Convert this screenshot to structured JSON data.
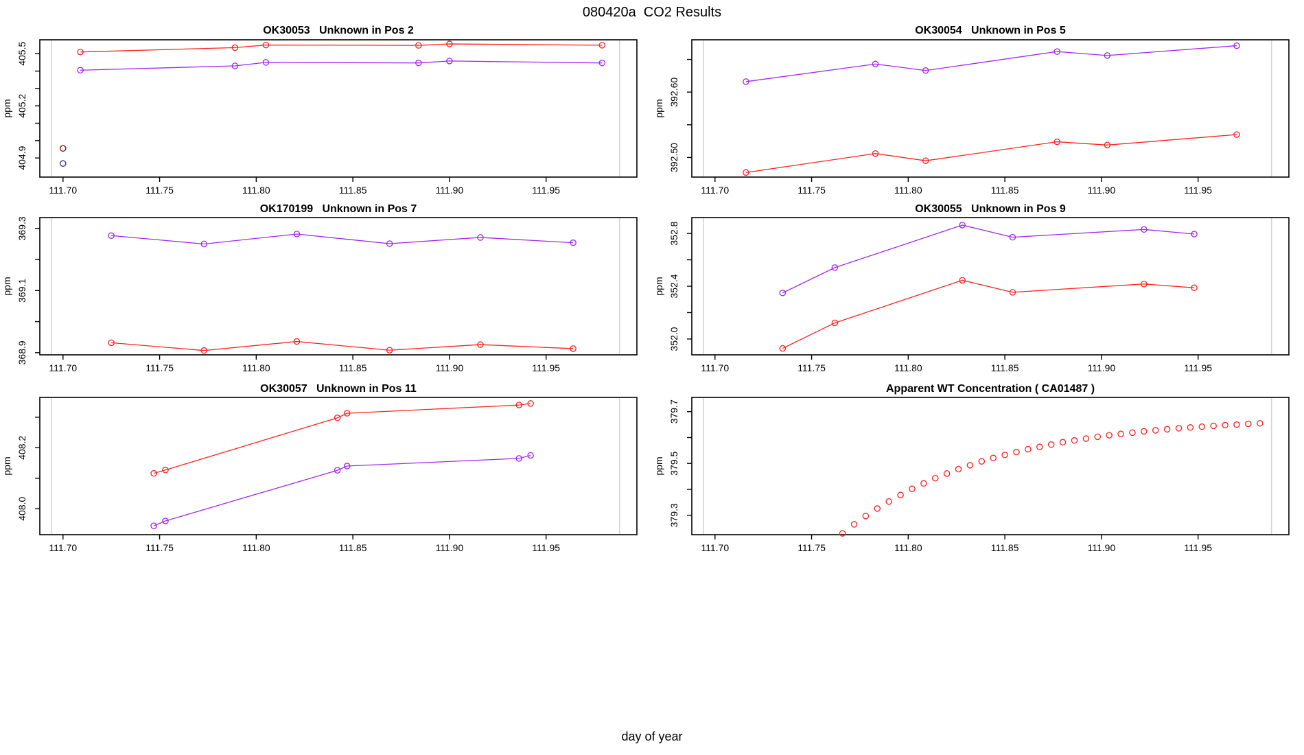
{
  "page_title": "080420a  CO2 Results",
  "outer_xlabel": "day of year",
  "y_axis_label": "ppm",
  "colors": {
    "red": "#ff2222",
    "purple": "#a228ee",
    "dark_red": "#8b2222",
    "dark_purple": "#473a8c",
    "vline_gray": "#d2d2d2",
    "axis": "#000000"
  },
  "x_axis": {
    "lim": [
      111.688,
      111.997
    ],
    "ticks": [
      111.7,
      111.75,
      111.8,
      111.85,
      111.9,
      111.95
    ],
    "labels": [
      "111.70",
      "111.75",
      "111.80",
      "111.85",
      "111.90",
      "111.95"
    ],
    "vlines": [
      111.694,
      111.988
    ]
  },
  "chart_data": [
    {
      "type": "line",
      "title": "OK30053   Unknown in Pos 2",
      "ylabel": "ppm",
      "ylim": [
        404.79,
        405.58
      ],
      "yticks": [
        {
          "v": 404.9,
          "label": "404.9"
        },
        {
          "v": 405.0,
          "label": ""
        },
        {
          "v": 405.1,
          "label": ""
        },
        {
          "v": 405.2,
          "label": "405.2"
        },
        {
          "v": 405.3,
          "label": ""
        },
        {
          "v": 405.4,
          "label": ""
        },
        {
          "v": 405.5,
          "label": "405.5"
        }
      ],
      "series": [
        {
          "name": "flask-red",
          "color": "red",
          "draw_line": true,
          "x": [
            111.709,
            111.789,
            111.805,
            111.884,
            111.9,
            111.979
          ],
          "y": [
            405.51,
            405.535,
            405.55,
            405.548,
            405.556,
            405.549
          ]
        },
        {
          "name": "flask-purple",
          "color": "purple",
          "draw_line": true,
          "x": [
            111.709,
            111.789,
            111.805,
            111.884,
            111.9,
            111.979
          ],
          "y": [
            405.405,
            405.43,
            405.45,
            405.447,
            405.458,
            405.447
          ]
        }
      ],
      "extra_points": [
        {
          "x": 111.7,
          "y": 404.955,
          "color": "dark_red"
        },
        {
          "x": 111.7,
          "y": 404.868,
          "color": "dark_purple"
        }
      ]
    },
    {
      "type": "line",
      "title": "OK30054   Unknown in Pos 5",
      "ylabel": "ppm",
      "ylim": [
        392.47,
        392.68
      ],
      "yticks": [
        {
          "v": 392.5,
          "label": "392.50"
        },
        {
          "v": 392.55,
          "label": ""
        },
        {
          "v": 392.6,
          "label": "392.60"
        },
        {
          "v": 392.65,
          "label": ""
        }
      ],
      "series": [
        {
          "name": "flask-purple",
          "color": "purple",
          "draw_line": true,
          "x": [
            111.716,
            111.783,
            111.809,
            111.877,
            111.903,
            111.97
          ],
          "y": [
            392.616,
            392.643,
            392.633,
            392.662,
            392.656,
            392.671
          ]
        },
        {
          "name": "flask-red",
          "color": "red",
          "draw_line": true,
          "x": [
            111.716,
            111.783,
            111.809,
            111.877,
            111.903,
            111.97
          ],
          "y": [
            392.477,
            392.506,
            392.495,
            392.524,
            392.519,
            392.535
          ]
        }
      ],
      "extra_points": []
    },
    {
      "type": "line",
      "title": "OK170199   Unknown in Pos 7",
      "ylabel": "ppm",
      "ylim": [
        368.893,
        369.335
      ],
      "yticks": [
        {
          "v": 368.9,
          "label": "368.9"
        },
        {
          "v": 369.0,
          "label": ""
        },
        {
          "v": 369.1,
          "label": "369.1"
        },
        {
          "v": 369.2,
          "label": ""
        },
        {
          "v": 369.3,
          "label": "369.3"
        }
      ],
      "series": [
        {
          "name": "flask-purple",
          "color": "purple",
          "draw_line": true,
          "x": [
            111.725,
            111.773,
            111.821,
            111.869,
            111.916,
            111.964
          ],
          "y": [
            369.277,
            369.25,
            369.282,
            369.251,
            369.271,
            369.254
          ]
        },
        {
          "name": "flask-red",
          "color": "red",
          "draw_line": true,
          "x": [
            111.725,
            111.773,
            111.821,
            111.869,
            111.916,
            111.964
          ],
          "y": [
            368.932,
            368.907,
            368.936,
            368.908,
            368.926,
            368.913
          ]
        }
      ],
      "extra_points": []
    },
    {
      "type": "line",
      "title": "OK30055   Unknown in Pos 9",
      "ylabel": "ppm",
      "ylim": [
        351.88,
        352.92
      ],
      "yticks": [
        {
          "v": 352.0,
          "label": "352.0"
        },
        {
          "v": 352.2,
          "label": ""
        },
        {
          "v": 352.4,
          "label": "352.4"
        },
        {
          "v": 352.6,
          "label": ""
        },
        {
          "v": 352.8,
          "label": "352.8"
        }
      ],
      "series": [
        {
          "name": "flask-purple",
          "color": "purple",
          "draw_line": true,
          "x": [
            111.735,
            111.762,
            111.828,
            111.854,
            111.922,
            111.948
          ],
          "y": [
            352.349,
            352.541,
            352.863,
            352.771,
            352.83,
            352.795
          ]
        },
        {
          "name": "flask-red",
          "color": "red",
          "draw_line": true,
          "x": [
            111.735,
            111.762,
            111.828,
            111.854,
            111.922,
            111.948
          ],
          "y": [
            351.929,
            352.122,
            352.445,
            352.354,
            352.417,
            352.388
          ]
        }
      ],
      "extra_points": []
    },
    {
      "type": "line",
      "title": "OK30057   Unknown in Pos 11",
      "ylabel": "ppm",
      "ylim": [
        407.915,
        408.365
      ],
      "yticks": [
        {
          "v": 408.0,
          "label": "408.0"
        },
        {
          "v": 408.1,
          "label": ""
        },
        {
          "v": 408.2,
          "label": "408.2"
        },
        {
          "v": 408.3,
          "label": ""
        }
      ],
      "series": [
        {
          "name": "flask-red",
          "color": "red",
          "draw_line": true,
          "x": [
            111.747,
            111.753,
            111.842,
            111.847,
            111.936,
            111.942
          ],
          "y": [
            408.116,
            408.127,
            408.298,
            408.313,
            408.34,
            408.345
          ]
        },
        {
          "name": "flask-purple",
          "color": "purple",
          "draw_line": true,
          "x": [
            111.747,
            111.753,
            111.842,
            111.847,
            111.936,
            111.942
          ],
          "y": [
            407.944,
            407.96,
            408.126,
            408.14,
            408.165,
            408.175
          ]
        }
      ],
      "extra_points": []
    },
    {
      "type": "scatter",
      "title": "Apparent WT Concentration ( CA01487 )",
      "ylabel": "ppm",
      "ylim": [
        379.225,
        379.755
      ],
      "yticks": [
        {
          "v": 379.3,
          "label": "379.3"
        },
        {
          "v": 379.4,
          "label": ""
        },
        {
          "v": 379.5,
          "label": "379.5"
        },
        {
          "v": 379.6,
          "label": ""
        },
        {
          "v": 379.7,
          "label": "379.7"
        }
      ],
      "series": [
        {
          "name": "apparent-concentration",
          "color": "red",
          "draw_line": false,
          "x": [
            111.766,
            111.772,
            111.778,
            111.784,
            111.79,
            111.796,
            111.802,
            111.808,
            111.814,
            111.82,
            111.826,
            111.832,
            111.838,
            111.844,
            111.85,
            111.856,
            111.862,
            111.868,
            111.874,
            111.88,
            111.886,
            111.892,
            111.898,
            111.904,
            111.91,
            111.916,
            111.922,
            111.928,
            111.934,
            111.94,
            111.946,
            111.952,
            111.958,
            111.964,
            111.97,
            111.976,
            111.982
          ],
          "y": [
            379.23,
            379.265,
            379.297,
            379.326,
            379.353,
            379.378,
            379.402,
            379.423,
            379.443,
            379.461,
            379.478,
            379.493,
            379.508,
            379.521,
            379.533,
            379.544,
            379.555,
            379.564,
            379.573,
            379.582,
            379.589,
            379.596,
            379.603,
            379.609,
            379.614,
            379.619,
            379.624,
            379.628,
            379.632,
            379.636,
            379.639,
            379.642,
            379.645,
            379.648,
            379.65,
            379.653,
            379.655
          ]
        }
      ],
      "extra_points": []
    }
  ]
}
